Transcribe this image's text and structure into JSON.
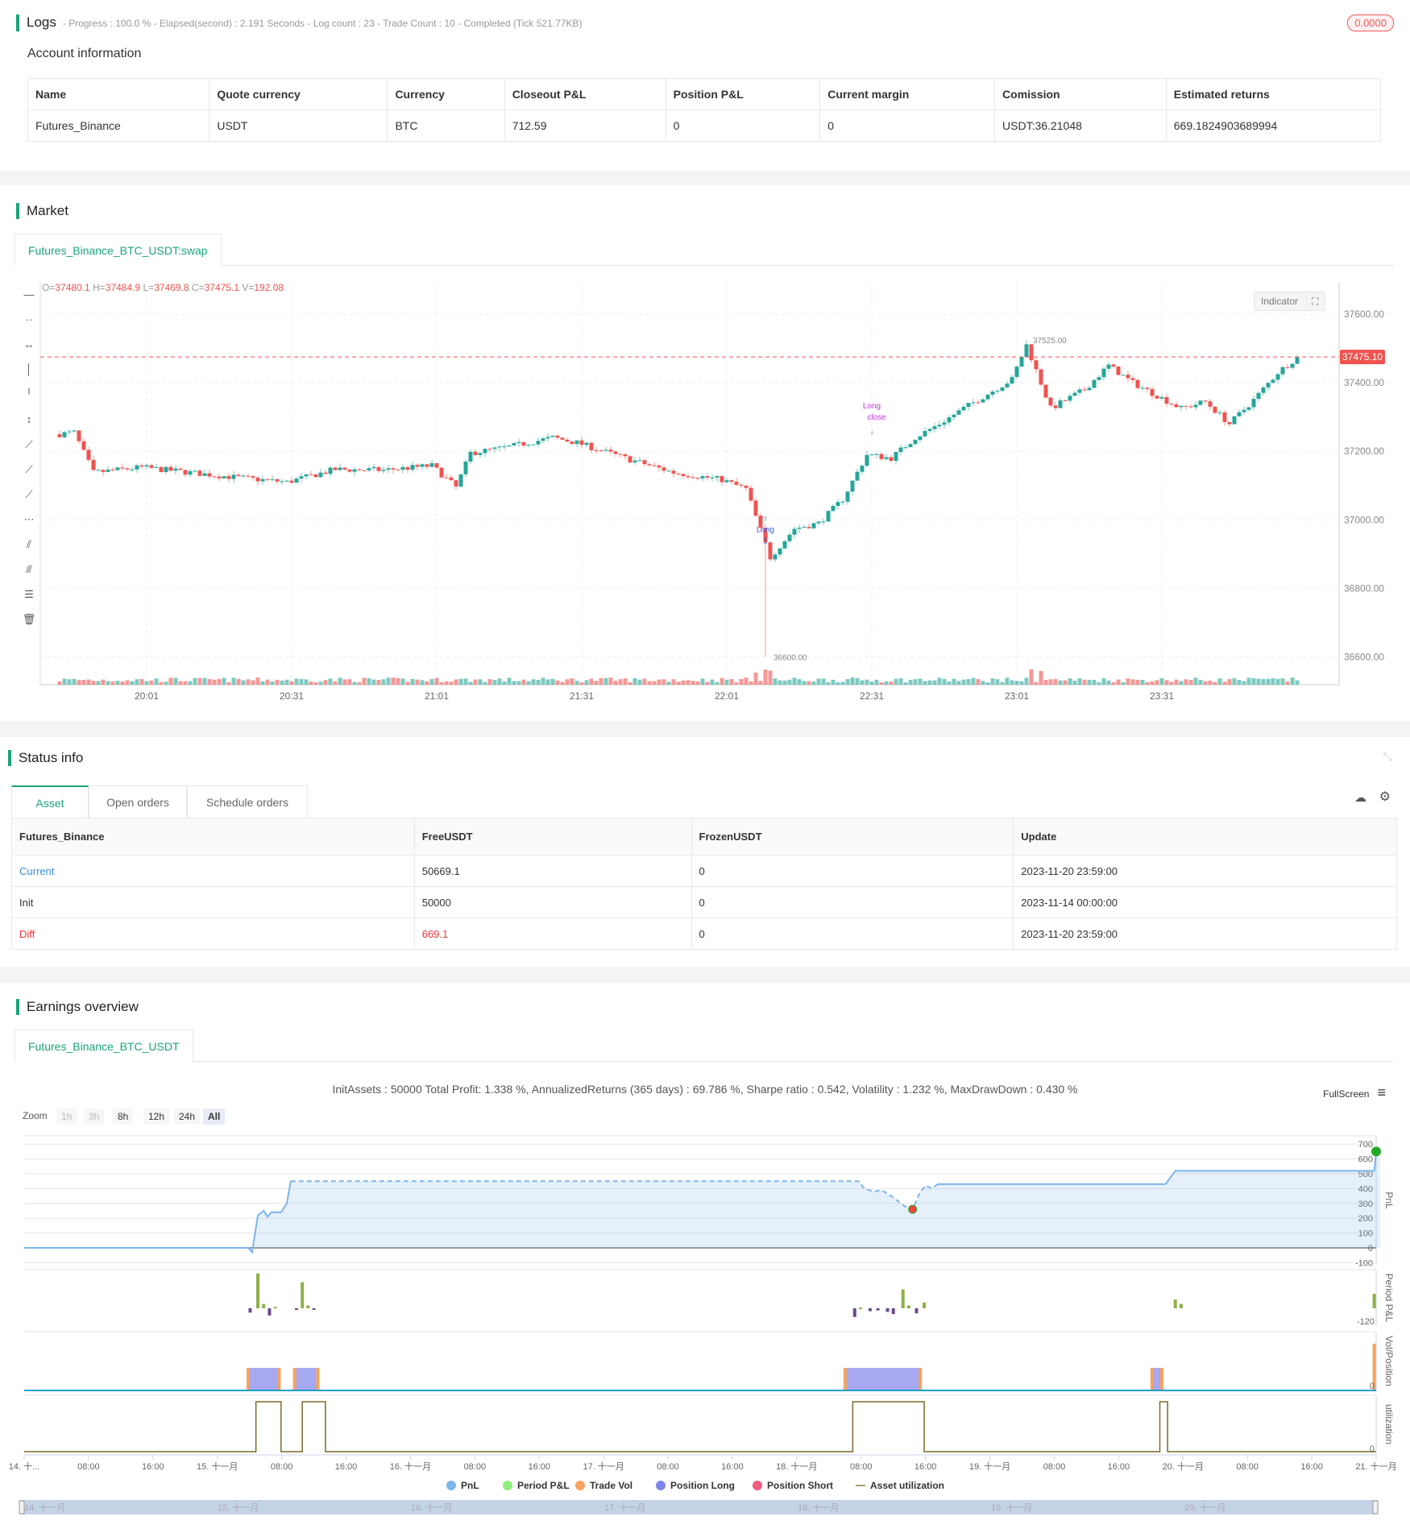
{
  "logs": {
    "title": "Logs",
    "meta": "- Progress : 100.0 % - Elapsed(second) : 2.191  Seconds - Log count : 23 - Trade Count : 10 - Completed (Tick 521.77KB)",
    "badge": "0.0000"
  },
  "account": {
    "title": "Account information",
    "headers": [
      "Name",
      "Quote currency",
      "Currency",
      "Closeout P&L",
      "Position P&L",
      "Current margin",
      "Comission",
      "Estimated returns"
    ],
    "row": [
      "Futures_Binance",
      "USDT",
      "BTC",
      "712.59",
      "0",
      "0",
      "USDT:36.21048",
      "669.1824903689994"
    ]
  },
  "market": {
    "title": "Market",
    "tab": "Futures_Binance_BTC_USDT:swap",
    "indicator_label": "Indicator",
    "ohlc": {
      "o_label": "O=",
      "o": "37480.1",
      "h_label": "H=",
      "h": "37484.9",
      "l_label": "L=",
      "l": "37469.8",
      "c_label": "C=",
      "c": "37475.1",
      "v_label": "V=",
      "v": "192.08"
    },
    "last_price": "37475.10",
    "high_label": "37525.00",
    "low_label": "36600.00",
    "colors": {
      "up": "#26a69a",
      "down": "#ef5350"
    },
    "chart_data": {
      "type": "candlestick",
      "y_ticks": [
        "37600.00",
        "37400.00",
        "37200.00",
        "37000.00",
        "36800.00",
        "36600.00"
      ],
      "x_ticks": [
        "20:01",
        "20:31",
        "21:01",
        "21:31",
        "22:01",
        "22:31",
        "23:01",
        "23:31"
      ],
      "close_keyframes": [
        [
          "19:43",
          37250
        ],
        [
          "19:46",
          37255
        ],
        [
          "19:50",
          37138
        ],
        [
          "20:00",
          37153
        ],
        [
          "20:10",
          37138
        ],
        [
          "20:20",
          37123
        ],
        [
          "20:30",
          37110
        ],
        [
          "20:40",
          37147
        ],
        [
          "20:50",
          37145
        ],
        [
          "21:00",
          37158
        ],
        [
          "21:05",
          37095
        ],
        [
          "21:08",
          37195
        ],
        [
          "21:15",
          37210
        ],
        [
          "21:20",
          37225
        ],
        [
          "21:25",
          37240
        ],
        [
          "21:30",
          37225
        ],
        [
          "21:40",
          37180
        ],
        [
          "21:50",
          37138
        ],
        [
          "22:00",
          37117
        ],
        [
          "22:05",
          37090
        ],
        [
          "22:10",
          36890
        ],
        [
          "22:15",
          36975
        ],
        [
          "22:20",
          36990
        ],
        [
          "22:25",
          37060
        ],
        [
          "22:30",
          37190
        ],
        [
          "22:35",
          37180
        ],
        [
          "22:40",
          37240
        ],
        [
          "22:45",
          37280
        ],
        [
          "22:50",
          37325
        ],
        [
          "23:00",
          37410
        ],
        [
          "23:03",
          37510
        ],
        [
          "23:08",
          37325
        ],
        [
          "23:15",
          37380
        ],
        [
          "23:20",
          37450
        ],
        [
          "23:25",
          37400
        ],
        [
          "23:35",
          37325
        ],
        [
          "23:40",
          37345
        ],
        [
          "23:45",
          37280
        ],
        [
          "23:50",
          37350
        ],
        [
          "23:55",
          37430
        ],
        [
          "23:59",
          37475
        ]
      ],
      "markers": [
        {
          "time": "22:09",
          "label": "Long",
          "sub": "1",
          "color": "#3b5bdb"
        },
        {
          "time": "22:31",
          "label": "Long",
          "sub": "close",
          "color": "#c03ad6"
        }
      ]
    },
    "toolbar_icons": [
      "horizontal-line-icon",
      "horizontal-ray-icon",
      "horizontal-segment-icon",
      "vertical-line-icon",
      "vertical-ray-icon",
      "vertical-segment-icon",
      "trend-line-icon",
      "ray-line-icon",
      "segment-icon",
      "price-line-icon",
      "parallel-channel-icon",
      "fib-icon",
      "price-channel-icon",
      "trash-icon"
    ]
  },
  "status": {
    "title": "Status info",
    "tabs": [
      "Asset",
      "Open orders",
      "Schedule orders"
    ],
    "headers": [
      "Futures_Binance",
      "FreeUSDT",
      "FrozenUSDT",
      "Update"
    ],
    "rows": [
      [
        "Current",
        "50669.1",
        "0",
        "2023-11-20 23:59:00"
      ],
      [
        "Init",
        "50000",
        "0",
        "2023-11-14 00:00:00"
      ],
      [
        "Diff",
        "669.1",
        "0",
        "2023-11-20 23:59:00"
      ]
    ]
  },
  "earnings": {
    "title": "Earnings overview",
    "tab": "Futures_Binance_BTC_USDT",
    "summary": "InitAssets : 50000 Total Profit: 1.338 %, AnnualizedReturns (365 days) : 69.786 %, Sharpe ratio : 0.542, Volatility : 1.232 %, MaxDrawDown : 0.430 %",
    "fullscreen": "FullScreen",
    "zoom_label": "Zoom",
    "zoom_buttons": [
      "1h",
      "3h",
      "8h",
      "12h",
      "24h",
      "All"
    ],
    "zoom_active": "All",
    "chart_data": {
      "type": "line",
      "x_ticks": [
        "14. 十...",
        "08:00",
        "16:00",
        "15. 十一月",
        "08:00",
        "16:00",
        "16. 十一月",
        "08:00",
        "16:00",
        "17. 十一月",
        "08:00",
        "16:00",
        "18. 十一月",
        "08:00",
        "16:00",
        "19. 十一月",
        "08:00",
        "16:00",
        "20. 十一月",
        "08:00",
        "16:00",
        "21. 十一月"
      ],
      "pnl_ticks": [
        "700",
        "600",
        "500",
        "400",
        "300",
        "200",
        "100",
        "0",
        "-100"
      ],
      "pnl_ylim": [
        -100,
        700
      ],
      "axis_titles": [
        "PnL",
        "Period P&L",
        "Vol/Position",
        "utilization"
      ],
      "period_tick": "-120",
      "zero_tick": "0",
      "pnl": [
        [
          0,
          0
        ],
        [
          1.16,
          0
        ],
        [
          1.18,
          -30
        ],
        [
          1.21,
          220
        ],
        [
          1.24,
          250
        ],
        [
          1.26,
          210
        ],
        [
          1.28,
          240
        ],
        [
          1.33,
          240
        ],
        [
          1.36,
          300
        ],
        [
          1.38,
          450
        ],
        [
          4.32,
          450
        ],
        [
          4.35,
          400
        ],
        [
          4.4,
          380
        ],
        [
          4.44,
          390
        ],
        [
          4.5,
          340
        ],
        [
          4.56,
          280
        ],
        [
          4.6,
          260
        ],
        [
          4.64,
          380
        ],
        [
          4.67,
          420
        ],
        [
          4.7,
          400
        ],
        [
          4.73,
          430
        ],
        [
          5.91,
          430
        ],
        [
          5.96,
          520
        ],
        [
          6.99,
          520
        ],
        [
          7.0,
          640
        ],
        [
          7.02,
          660
        ]
      ],
      "pnl_dashed": [
        [
          1.38,
          4.73
        ]
      ],
      "period_pnl": [
        [
          1.17,
          -30
        ],
        [
          1.21,
          240
        ],
        [
          1.24,
          30
        ],
        [
          1.27,
          -50
        ],
        [
          1.3,
          10
        ],
        [
          1.41,
          -10
        ],
        [
          1.44,
          180
        ],
        [
          1.47,
          20
        ],
        [
          1.5,
          -5
        ],
        [
          4.3,
          -60
        ],
        [
          4.33,
          5
        ],
        [
          4.38,
          -20
        ],
        [
          4.42,
          -15
        ],
        [
          4.47,
          -25
        ],
        [
          4.5,
          -40
        ],
        [
          4.55,
          130
        ],
        [
          4.58,
          20
        ],
        [
          4.62,
          -35
        ],
        [
          4.66,
          40
        ],
        [
          5.96,
          60
        ],
        [
          5.99,
          30
        ],
        [
          6.99,
          100
        ]
      ],
      "positions": [
        [
          1.16,
          1.32
        ],
        [
          1.4,
          1.52
        ],
        [
          4.25,
          4.64
        ],
        [
          5.84,
          5.89
        ]
      ],
      "trade_vol": [
        [
          1.16
        ],
        [
          1.32
        ],
        [
          1.4
        ],
        [
          1.52
        ],
        [
          4.25
        ],
        [
          4.64
        ],
        [
          5.84
        ],
        [
          5.89
        ],
        [
          6.99
        ]
      ],
      "utilization": [
        [
          1.2,
          1.33
        ],
        [
          1.44,
          1.56
        ],
        [
          4.29,
          4.66
        ],
        [
          5.88,
          5.92
        ]
      ],
      "legend": [
        {
          "name": "PnL",
          "color": "#7cb5ec"
        },
        {
          "name": "Period P&L",
          "color": "#90ed7d"
        },
        {
          "name": "Trade Vol",
          "color": "#f7a35c"
        },
        {
          "name": "Position Long",
          "color": "#8085e9"
        },
        {
          "name": "Position Short",
          "color": "#f15c80"
        },
        {
          "name": "Asset utilization",
          "color": "#a89f6e"
        }
      ],
      "navigator_labels": [
        "14. 十一月",
        "15. 十一月",
        "16. 十一月",
        "17. 十一月",
        "18. 十一月",
        "19. 十一月",
        "20. 十一月"
      ]
    }
  }
}
